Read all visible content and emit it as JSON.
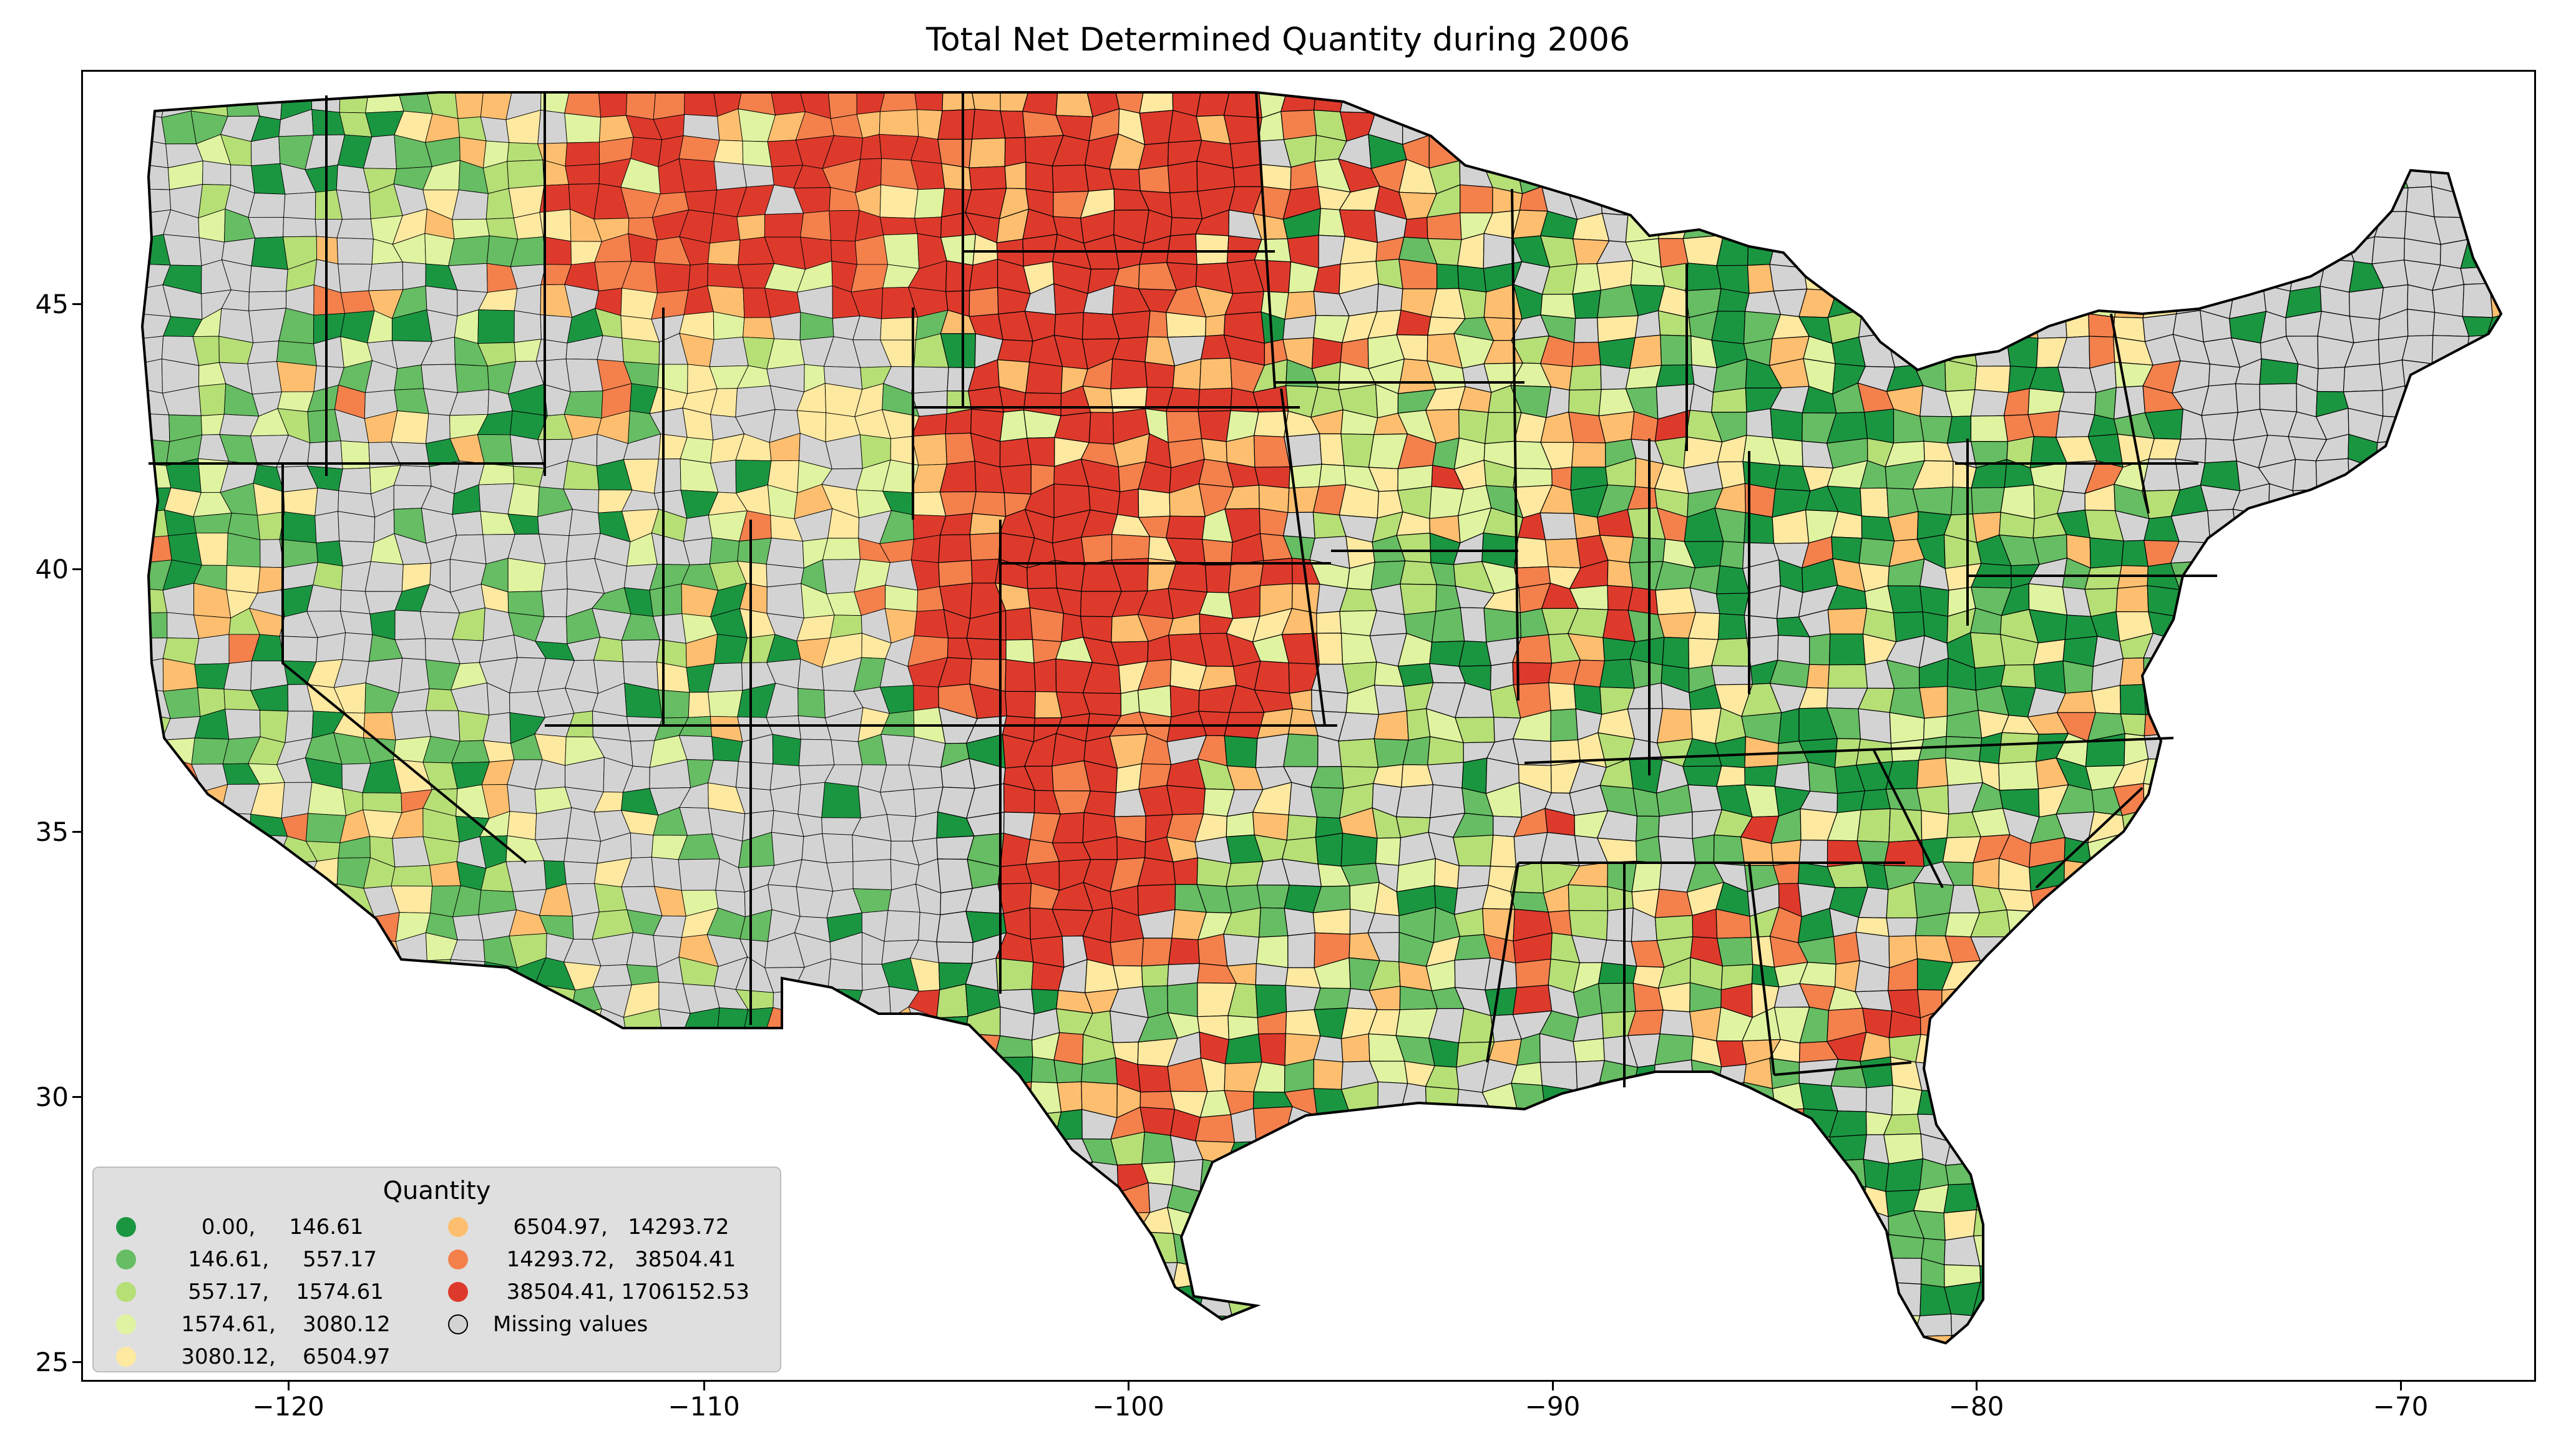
{
  "title": "Total Net Determined Quantity during 2006",
  "x_ticks": [
    "−120",
    "−110",
    "−100",
    "−90",
    "−80",
    "−70"
  ],
  "y_ticks": [
    "45",
    "40",
    "35",
    "30",
    "25"
  ],
  "legend": {
    "title": "Quantity",
    "items": [
      {
        "label": "      0.00,     146.61",
        "color": "#1a9641"
      },
      {
        "label": "    146.61,     557.17",
        "color": "#66bd63"
      },
      {
        "label": "    557.17,    1574.61",
        "color": "#b6df76"
      },
      {
        "label": "   1574.61,    3080.12",
        "color": "#e0f3a0"
      },
      {
        "label": "   3080.12,    6504.97",
        "color": "#fee9a0"
      },
      {
        "label": "   6504.97,   14293.72",
        "color": "#fdbf6f"
      },
      {
        "label": "  14293.72,   38504.41",
        "color": "#f4804c"
      },
      {
        "label": "  38504.41, 1706152.53",
        "color": "#dd3a2c"
      },
      {
        "label": "Missing values",
        "color": "#d3d3d3"
      }
    ]
  },
  "colors": {
    "missing": "#d3d3d3",
    "boundary": "#000000"
  }
}
